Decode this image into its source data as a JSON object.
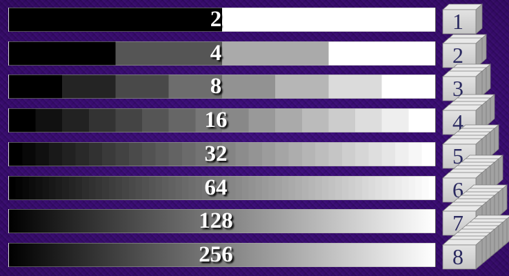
{
  "figure": {
    "description": "Grayscale ramp quantized to increasing numbers of gray levels, paired with stacks of cubes representing bits per pixel",
    "rows": [
      {
        "gray_levels": 2,
        "bar_label": "2",
        "bits": 1,
        "cube_label": "1"
      },
      {
        "gray_levels": 4,
        "bar_label": "4",
        "bits": 2,
        "cube_label": "2"
      },
      {
        "gray_levels": 8,
        "bar_label": "8",
        "bits": 3,
        "cube_label": "3"
      },
      {
        "gray_levels": 16,
        "bar_label": "16",
        "bits": 4,
        "cube_label": "4"
      },
      {
        "gray_levels": 32,
        "bar_label": "32",
        "bits": 5,
        "cube_label": "5"
      },
      {
        "gray_levels": 64,
        "bar_label": "64",
        "bits": 6,
        "cube_label": "6"
      },
      {
        "gray_levels": 128,
        "bar_label": "128",
        "bits": 7,
        "cube_label": "7"
      },
      {
        "gray_levels": 256,
        "bar_label": "256",
        "bits": 8,
        "cube_label": "8"
      }
    ],
    "ramp": {
      "start_color": "#000000",
      "end_color": "#ffffff",
      "direction": "left-to-right"
    }
  },
  "colors": {
    "background_purple": "#360b6a",
    "background_purple_bright": "#3e0f7e",
    "background_purple_dark": "#220743",
    "bar_label_text": "#ffffff",
    "bar_label_shadow": "#000000",
    "cube_front": "#d4d4d4",
    "cube_front_light": "#e3e3e3",
    "cube_front_dark": "#c6c6c6",
    "cube_top": "#e9e9e9",
    "cube_side": "#a2a2a2",
    "cube_edge": "#7d7d7d",
    "cube_number_text": "#2a2960"
  }
}
